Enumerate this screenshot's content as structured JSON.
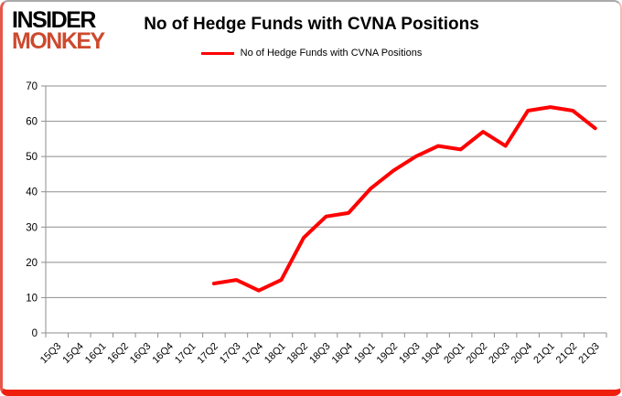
{
  "logo": {
    "line1": "INSIDER",
    "line2": "MONKEY"
  },
  "header": {
    "title": "No of Hedge Funds with CVNA Positions"
  },
  "legend": {
    "label": "No of Hedge Funds with CVNA Positions",
    "swatch_color": "#ff0000"
  },
  "colors": {
    "line": "#ff0000",
    "grid": "#8e8e8e",
    "axis": "#8e8e8e",
    "text": "#000000",
    "logo_accent": "#cd4a2e",
    "frame_red": "#ef1f0e"
  },
  "axes": {
    "y_ticks": [
      0,
      10,
      20,
      30,
      40,
      50,
      60,
      70
    ],
    "x_tick_labels": [
      "15Q3",
      "15Q4",
      "16Q1",
      "16Q2",
      "16Q3",
      "16Q4",
      "17Q1",
      "17Q2",
      "17Q3",
      "17Q4",
      "18Q1",
      "18Q2",
      "18Q3",
      "18Q4",
      "19Q1",
      "19Q2",
      "19Q3",
      "19Q4",
      "20Q1",
      "20Q2",
      "20Q3",
      "20Q4",
      "21Q1",
      "21Q2",
      "21Q3"
    ]
  },
  "chart_data": {
    "type": "line",
    "title": "No of Hedge Funds with CVNA Positions",
    "categories": [
      "15Q3",
      "15Q4",
      "16Q1",
      "16Q2",
      "16Q3",
      "16Q4",
      "17Q1",
      "17Q2",
      "17Q3",
      "17Q4",
      "18Q1",
      "18Q2",
      "18Q3",
      "18Q4",
      "19Q1",
      "19Q2",
      "19Q3",
      "19Q4",
      "20Q1",
      "20Q2",
      "20Q3",
      "20Q4",
      "21Q1",
      "21Q2",
      "21Q3"
    ],
    "series": [
      {
        "name": "No of Hedge Funds with CVNA Positions",
        "color": "#ff0000",
        "values": [
          null,
          null,
          null,
          null,
          null,
          null,
          null,
          14,
          15,
          12,
          15,
          27,
          33,
          34,
          41,
          46,
          50,
          53,
          52,
          57,
          53,
          63,
          64,
          63,
          58
        ]
      }
    ],
    "xlabel": "",
    "ylabel": "",
    "ylim": [
      0,
      70
    ],
    "ytick_step": 10,
    "grid": "horizontal",
    "legend_position": "top"
  }
}
